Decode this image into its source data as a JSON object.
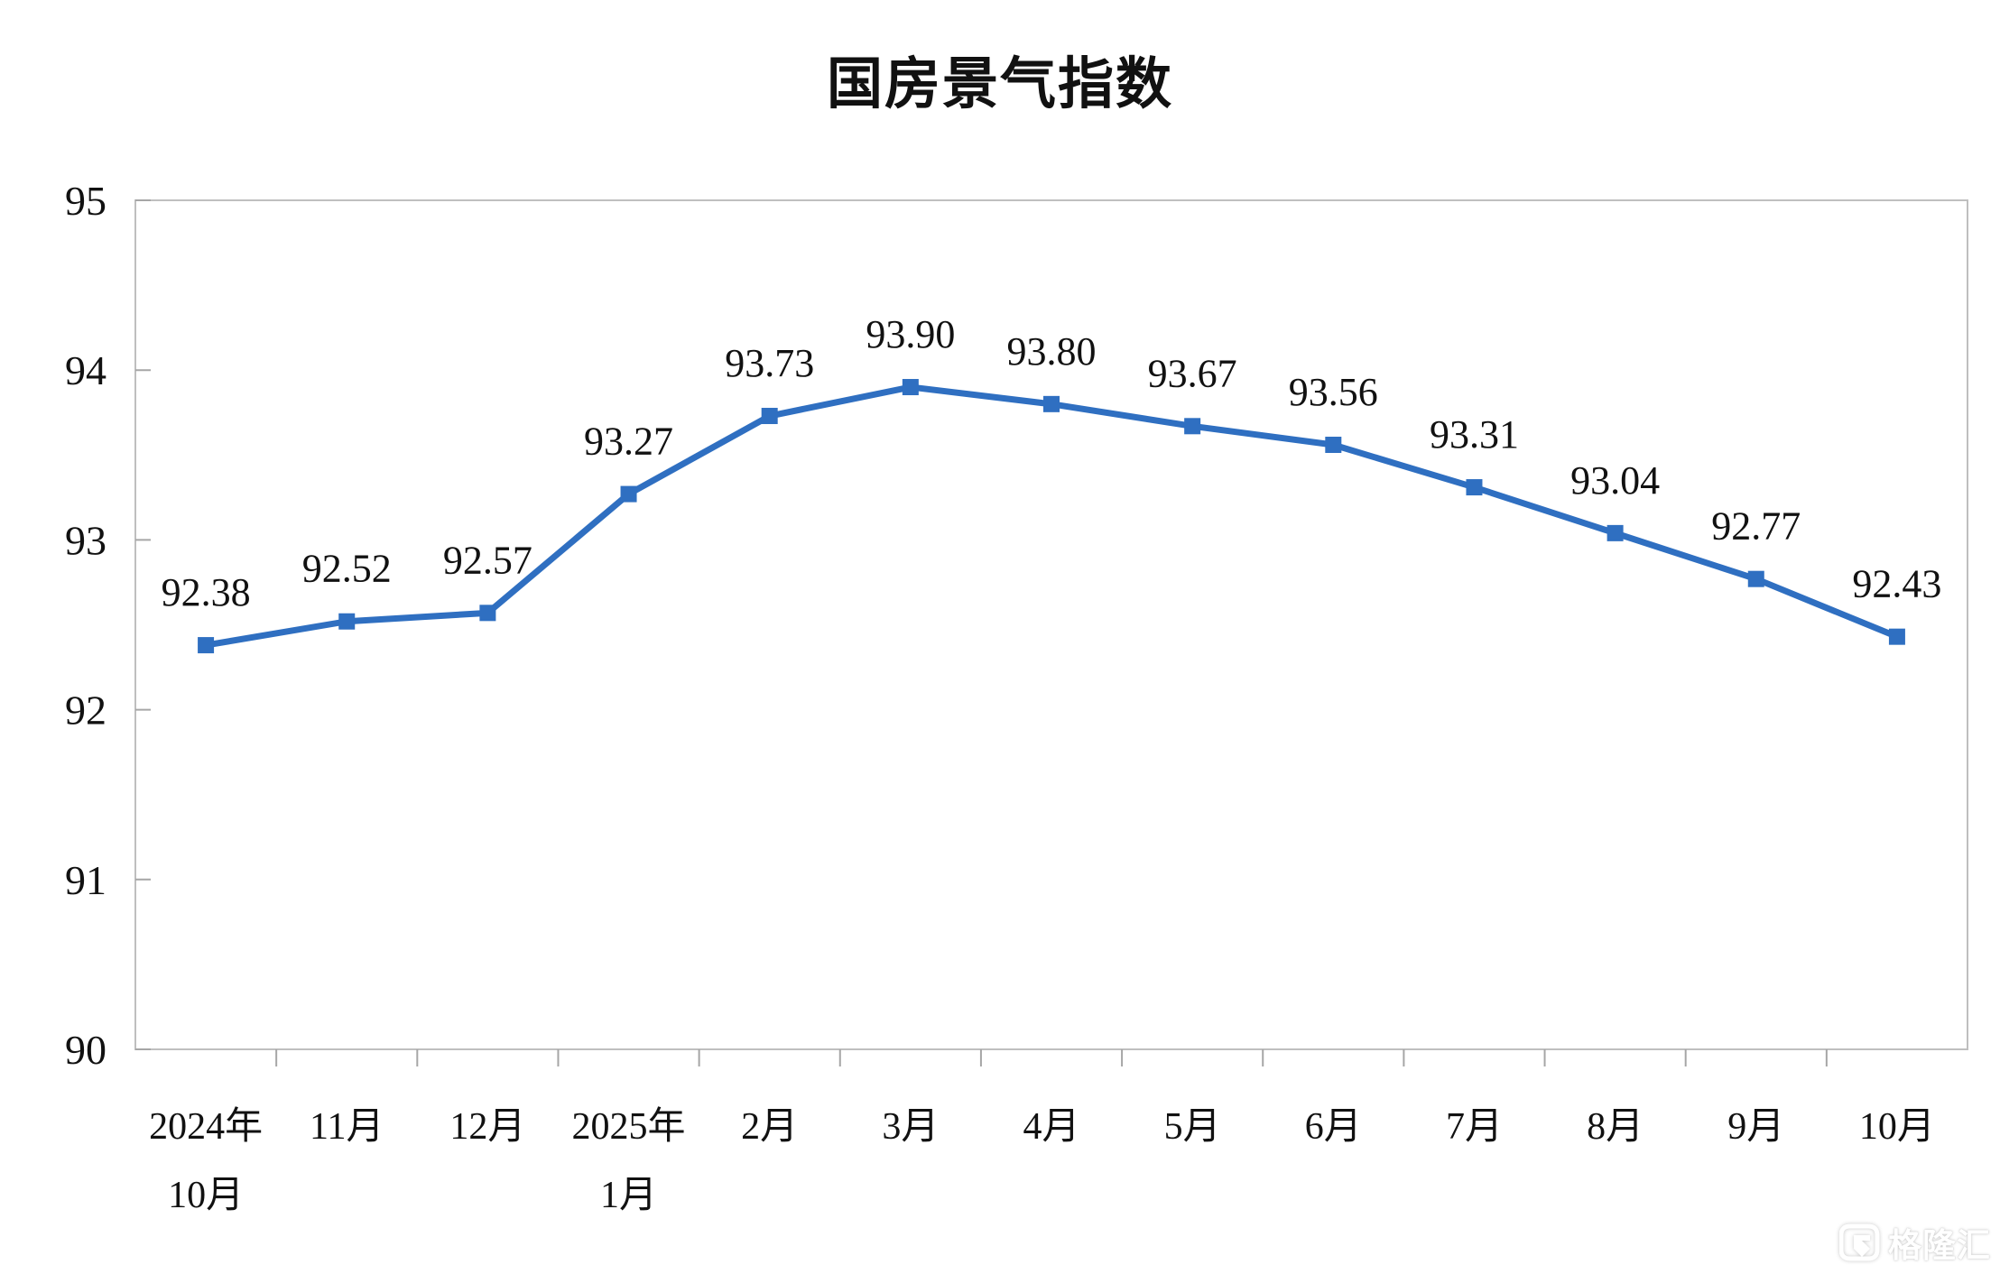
{
  "title": "国房景气指数",
  "watermark": {
    "text": "格隆汇",
    "logo": "gelonghui-g"
  },
  "chart_data": {
    "type": "line",
    "title": "国房景气指数",
    "categories": [
      "2024年\n10月",
      "11月",
      "12月",
      "2025年\n1月",
      "2月",
      "3月",
      "4月",
      "5月",
      "6月",
      "7月",
      "8月",
      "9月",
      "10月"
    ],
    "values": [
      92.38,
      92.52,
      92.57,
      93.27,
      93.73,
      93.9,
      93.8,
      93.67,
      93.56,
      93.31,
      93.04,
      92.77,
      92.43
    ],
    "point_labels": [
      "92.38",
      "92.52",
      "92.57",
      "93.27",
      "93.73",
      "93.90",
      "93.80",
      "93.67",
      "93.56",
      "93.31",
      "93.04",
      "92.77",
      "92.43"
    ],
    "xlabel": "",
    "ylabel": "",
    "ylim": [
      90,
      95
    ],
    "yticks": [
      "95",
      "94",
      "93",
      "92",
      "91",
      "90"
    ],
    "grid": false,
    "legend": "none",
    "marker": "square",
    "line_color": "#2F6FC1",
    "axis_color": "#BFBFBF",
    "tick_color": "#A6A6A6",
    "text_color": "#111111"
  }
}
